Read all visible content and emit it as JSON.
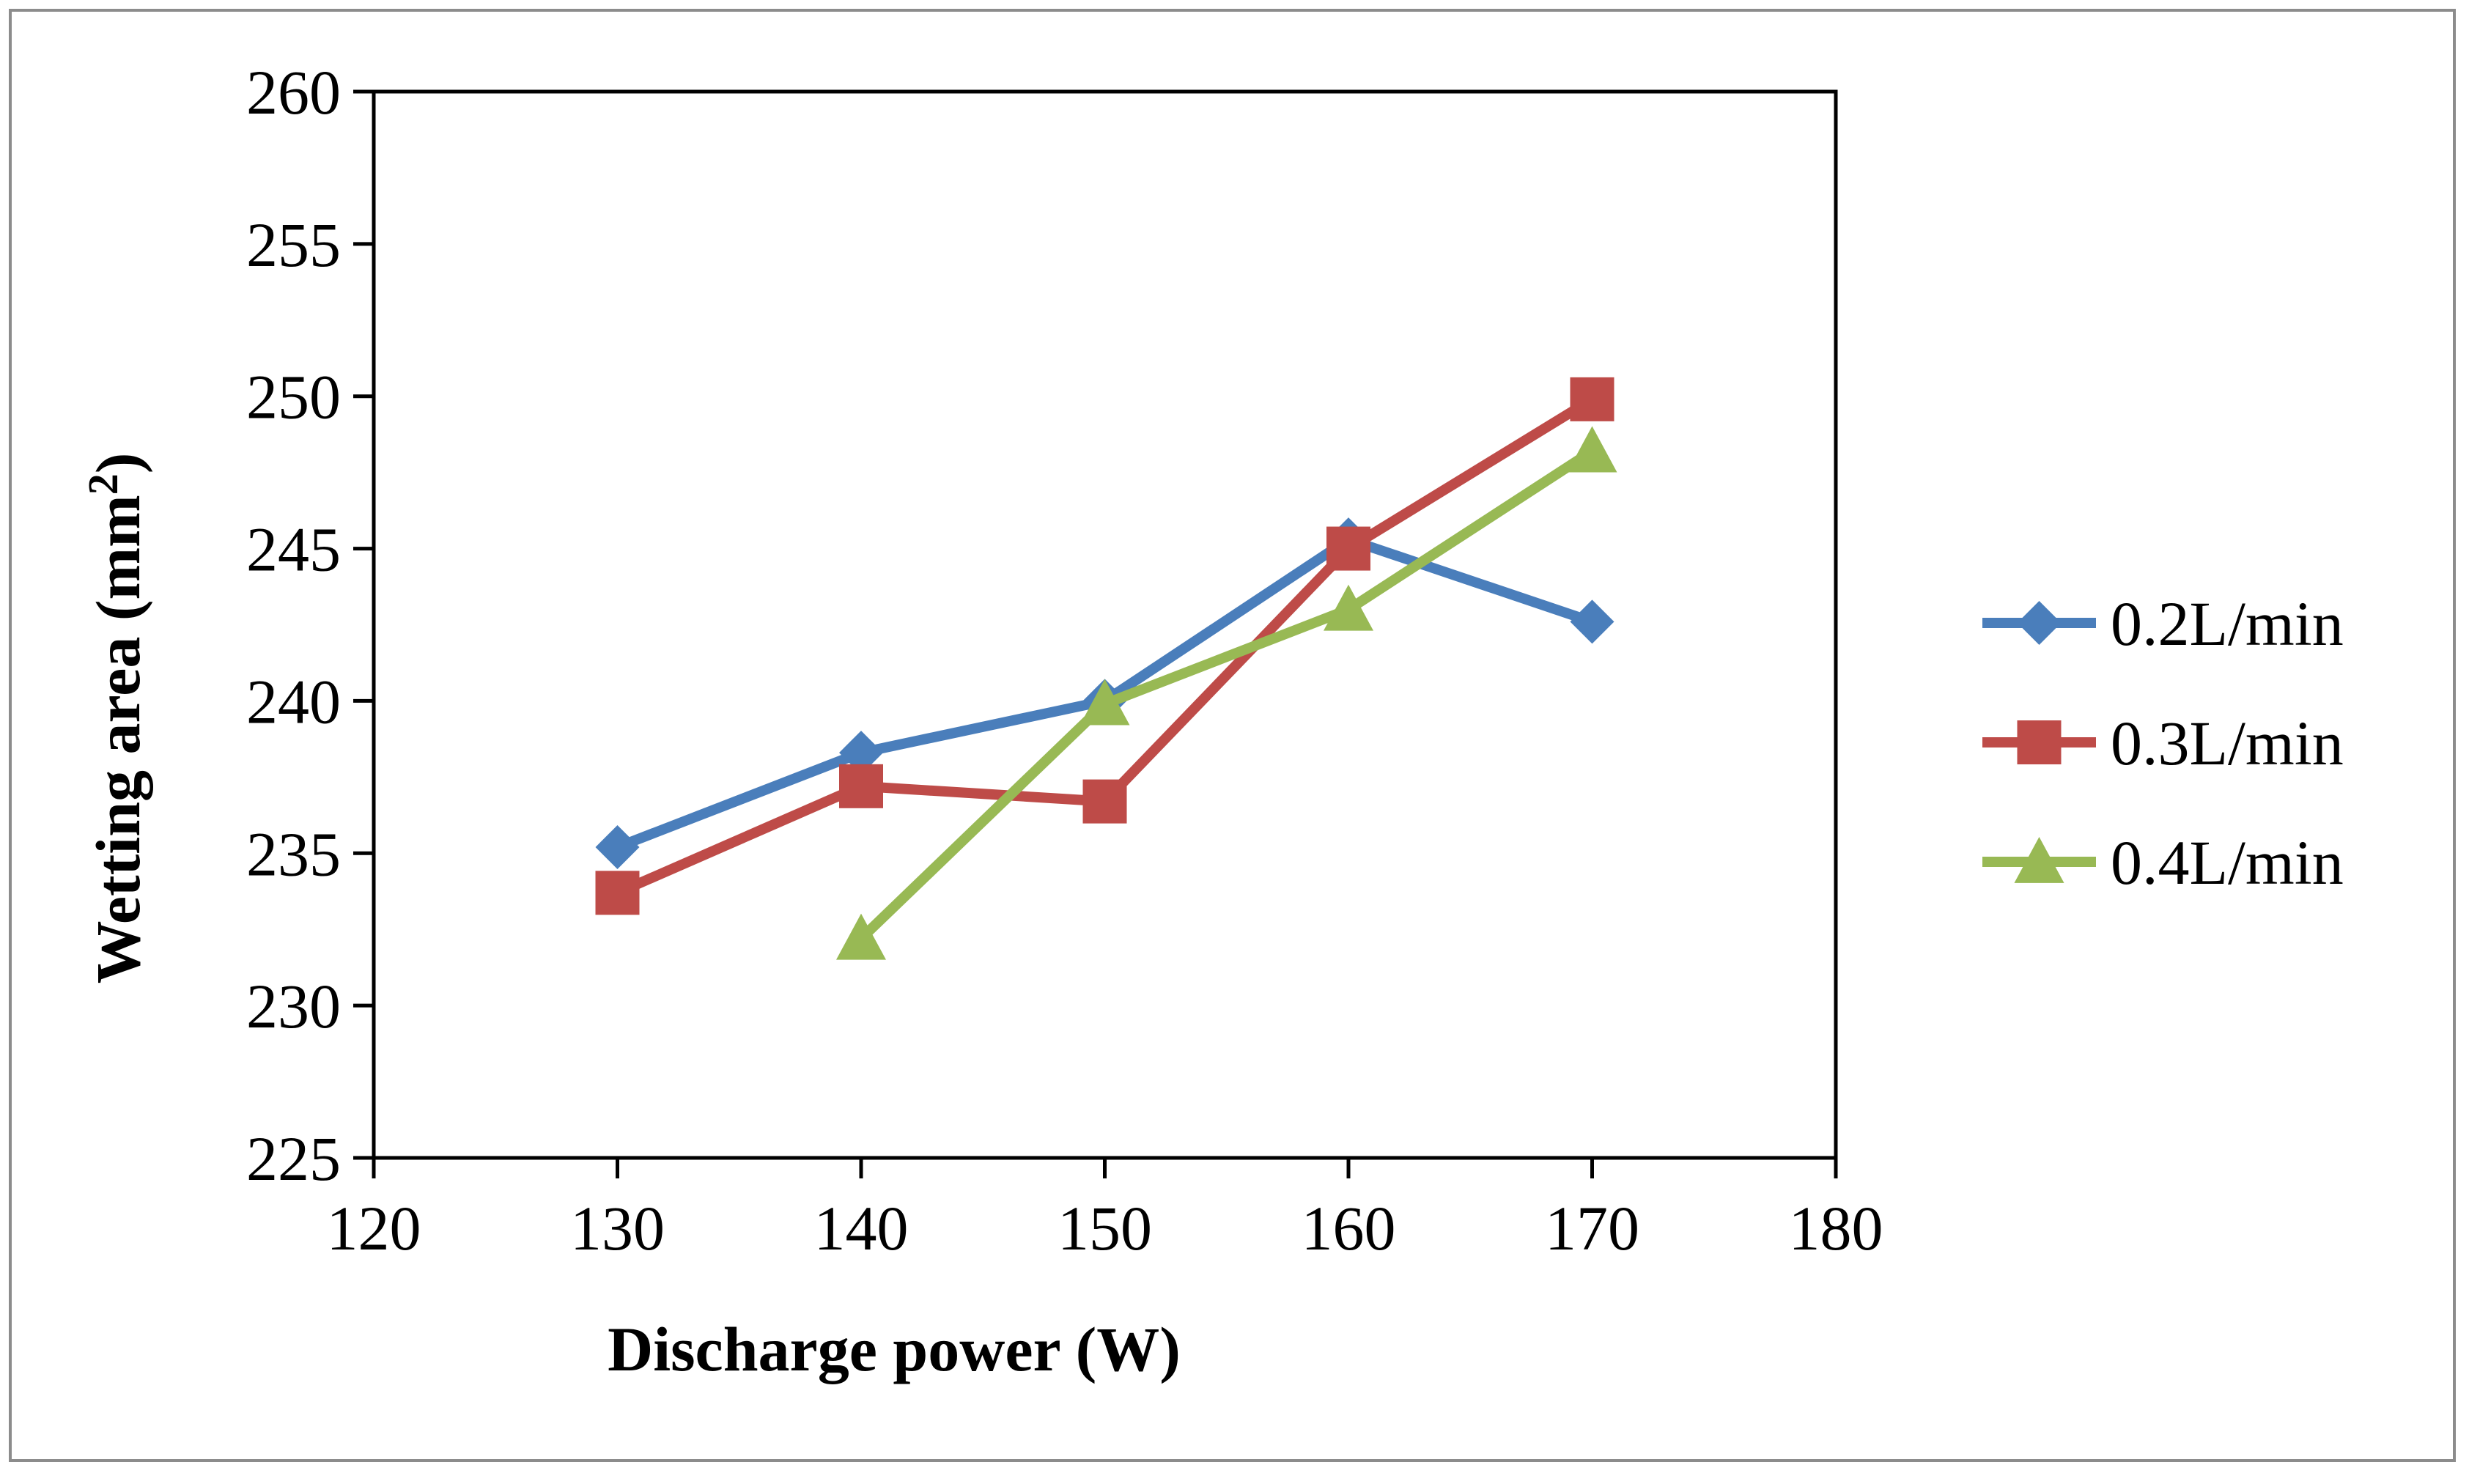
{
  "chart_data": {
    "type": "line",
    "title": "",
    "xlabel": "Discharge power (W)",
    "ylabel_main": "Wetting area (mm",
    "ylabel_sup": "2",
    "ylabel_end": ")",
    "xlim": [
      120,
      180
    ],
    "ylim": [
      225,
      260
    ],
    "xticks": [
      120,
      130,
      140,
      150,
      160,
      170,
      180
    ],
    "yticks": [
      225,
      230,
      235,
      240,
      245,
      250,
      255,
      260
    ],
    "grid": false,
    "legend_position": "right",
    "series": [
      {
        "name": "0.2L/min",
        "color": "#4a7ebb",
        "marker": "diamond",
        "points": [
          [
            130,
            235.2
          ],
          [
            140,
            238.3
          ],
          [
            150,
            240.0
          ],
          [
            160,
            245.3
          ],
          [
            170,
            242.6
          ]
        ]
      },
      {
        "name": "0.3L/min",
        "color": "#be4b48",
        "marker": "square",
        "points": [
          [
            130,
            233.7
          ],
          [
            140,
            237.2
          ],
          [
            150,
            236.7
          ],
          [
            160,
            245.0
          ],
          [
            170,
            249.9
          ]
        ]
      },
      {
        "name": "0.4L/min",
        "color": "#98b954",
        "marker": "triangle",
        "points": [
          [
            140,
            232.2
          ],
          [
            150,
            239.9
          ],
          [
            160,
            243.0
          ],
          [
            170,
            248.2
          ]
        ]
      }
    ]
  }
}
